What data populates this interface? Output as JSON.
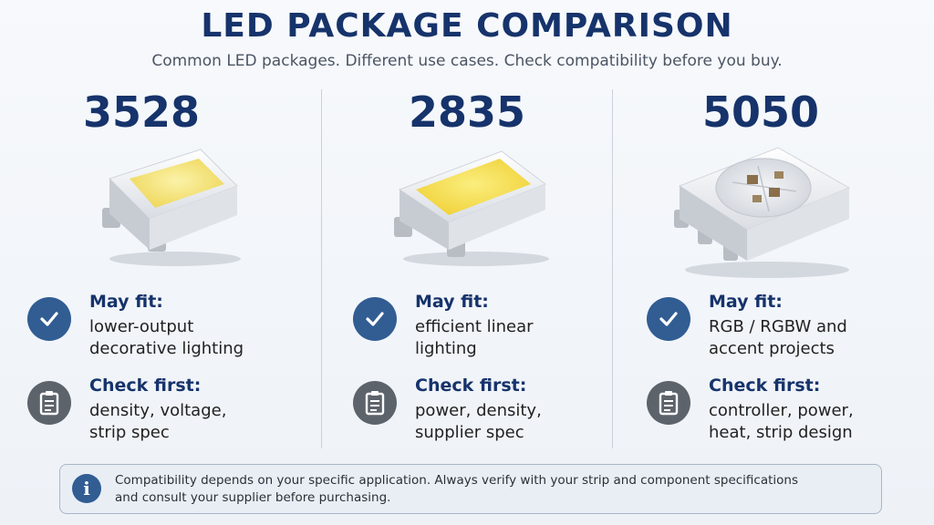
{
  "header": {
    "title": "LED PACKAGE COMPARISON",
    "subtitle": "Common LED packages. Different use cases. Check compatibility before you buy."
  },
  "packages": [
    {
      "code": "3528",
      "may_fit_label": "May fit:",
      "may_fit": [
        "lower-output",
        "decorative lighting"
      ],
      "check_first_label": "Check first:",
      "check_first": [
        "density, voltage,",
        "strip spec"
      ]
    },
    {
      "code": "2835",
      "may_fit_label": "May fit:",
      "may_fit": [
        "efficient linear",
        "lighting"
      ],
      "check_first_label": "Check first:",
      "check_first": [
        "power, density,",
        "supplier spec"
      ]
    },
    {
      "code": "5050",
      "may_fit_label": "May fit:",
      "may_fit": [
        "RGB / RGBW and",
        "accent projects"
      ],
      "check_first_label": "Check first:",
      "check_first": [
        "controller, power,",
        "heat, strip design"
      ]
    }
  ],
  "notice": {
    "icon": "info-icon",
    "lines": [
      "Compatibility depends on your specific application. Always verify with your strip and component specifications",
      "and consult your supplier before purchasing."
    ]
  },
  "colors": {
    "title": "#16336b",
    "check_badge": "#315d93",
    "clipboard_badge": "#5d636b",
    "phosphor_yellow": "#f6e36a"
  }
}
